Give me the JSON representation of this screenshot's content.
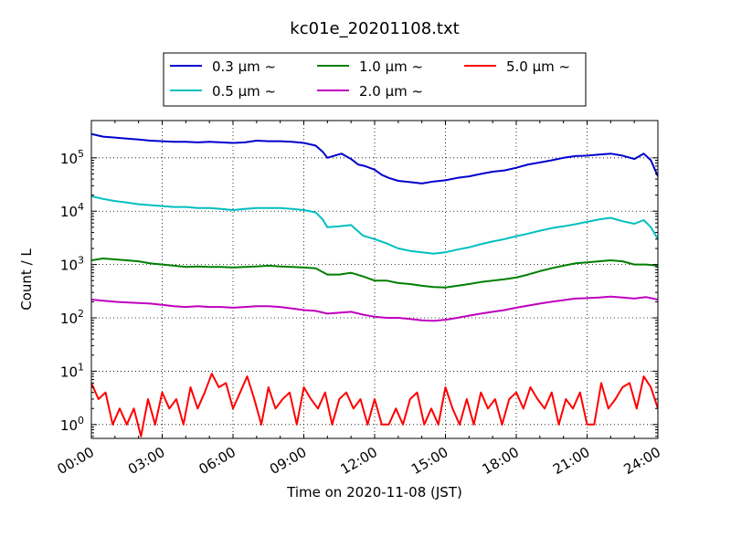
{
  "chart_data": {
    "type": "line",
    "title": "kc01e_20201108.txt",
    "xlabel": "Time on 2020-11-08 (JST)",
    "ylabel": "Count / L",
    "x_unit": "hours",
    "xlim": [
      0,
      24
    ],
    "ylim": [
      0.55,
      500000
    ],
    "yscale": "log",
    "grid": true,
    "legend_position": "top-center",
    "x_ticks": [
      {
        "value": 0,
        "label": "00:00"
      },
      {
        "value": 3,
        "label": "03:00"
      },
      {
        "value": 6,
        "label": "06:00"
      },
      {
        "value": 9,
        "label": "09:00"
      },
      {
        "value": 12,
        "label": "12:00"
      },
      {
        "value": 15,
        "label": "15:00"
      },
      {
        "value": 18,
        "label": "18:00"
      },
      {
        "value": 21,
        "label": "21:00"
      },
      {
        "value": 24,
        "label": "24:00"
      }
    ],
    "y_ticks": [
      {
        "value": 1,
        "base": "10",
        "exp": "0"
      },
      {
        "value": 10,
        "base": "10",
        "exp": "1"
      },
      {
        "value": 100,
        "base": "10",
        "exp": "2"
      },
      {
        "value": 1000,
        "base": "10",
        "exp": "3"
      },
      {
        "value": 10000,
        "base": "10",
        "exp": "4"
      },
      {
        "value": 100000,
        "base": "10",
        "exp": "5"
      }
    ],
    "series": [
      {
        "name": "0.3 μm ~",
        "legend_text": "0.3 μm  ~",
        "color": "#0000cc",
        "x": [
          0,
          0.5,
          1,
          1.5,
          2,
          2.5,
          3,
          3.5,
          4,
          4.5,
          5,
          5.5,
          6,
          6.5,
          7,
          7.5,
          8,
          8.5,
          9,
          9.5,
          9.8,
          10,
          10.3,
          10.6,
          11,
          11.3,
          11.6,
          12,
          12.3,
          12.6,
          13,
          13.5,
          14,
          14.5,
          15,
          15.5,
          16,
          16.5,
          17,
          17.5,
          18,
          18.5,
          19,
          19.5,
          20,
          20.5,
          21,
          21.5,
          22,
          22.5,
          23,
          23.4,
          23.7,
          24
        ],
        "y": [
          280000,
          250000,
          240000,
          230000,
          220000,
          210000,
          205000,
          200000,
          200000,
          195000,
          200000,
          195000,
          190000,
          195000,
          210000,
          205000,
          205000,
          200000,
          190000,
          170000,
          130000,
          100000,
          110000,
          120000,
          95000,
          75000,
          70000,
          60000,
          48000,
          42000,
          37000,
          35000,
          33000,
          36000,
          38000,
          42000,
          45000,
          50000,
          55000,
          58000,
          65000,
          75000,
          82000,
          90000,
          100000,
          108000,
          110000,
          115000,
          120000,
          110000,
          95000,
          120000,
          90000,
          45000
        ]
      },
      {
        "name": "0.5 μm ~",
        "legend_text": "0.5 μm  ~",
        "color": "#00bfbf",
        "x": [
          0,
          0.5,
          1,
          1.5,
          2,
          2.5,
          3,
          3.5,
          4,
          4.5,
          5,
          5.5,
          6,
          6.5,
          7,
          7.5,
          8,
          8.5,
          9,
          9.5,
          9.8,
          10,
          10.5,
          11,
          11.5,
          12,
          12.5,
          13,
          13.5,
          14,
          14.5,
          15,
          15.5,
          16,
          16.5,
          17,
          17.5,
          18,
          18.5,
          19,
          19.5,
          20,
          20.5,
          21,
          21.5,
          22,
          22.5,
          23,
          23.4,
          23.7,
          24
        ],
        "y": [
          19000,
          17000,
          15500,
          14500,
          13500,
          13000,
          12500,
          12000,
          12000,
          11500,
          11500,
          11000,
          10500,
          11000,
          11500,
          11500,
          11500,
          11000,
          10500,
          9500,
          7000,
          5000,
          5200,
          5500,
          3500,
          3000,
          2500,
          2000,
          1800,
          1700,
          1600,
          1700,
          1900,
          2100,
          2400,
          2700,
          3000,
          3400,
          3800,
          4300,
          4800,
          5200,
          5700,
          6300,
          7000,
          7500,
          6500,
          5800,
          6800,
          5000,
          3000
        ]
      },
      {
        "name": "1.0 μm ~",
        "legend_text": "1.0 μm  ~",
        "color": "#007f00",
        "x": [
          0,
          0.5,
          1,
          1.5,
          2,
          2.5,
          3,
          3.5,
          4,
          4.5,
          5,
          5.5,
          6,
          6.5,
          7,
          7.5,
          8,
          8.5,
          9,
          9.5,
          10,
          10.5,
          11,
          11.5,
          12,
          12.5,
          13,
          13.5,
          14,
          14.5,
          15,
          15.5,
          16,
          16.5,
          17,
          17.5,
          18,
          18.5,
          19,
          19.5,
          20,
          20.5,
          21,
          21.5,
          22,
          22.5,
          23,
          23.5,
          24
        ],
        "y": [
          1200,
          1300,
          1250,
          1200,
          1150,
          1050,
          1000,
          950,
          900,
          920,
          900,
          900,
          880,
          900,
          920,
          950,
          920,
          900,
          880,
          850,
          650,
          650,
          700,
          600,
          500,
          500,
          450,
          430,
          400,
          380,
          370,
          400,
          430,
          470,
          500,
          530,
          570,
          650,
          750,
          850,
          950,
          1050,
          1100,
          1150,
          1200,
          1150,
          1000,
          1000,
          950
        ]
      },
      {
        "name": "2.0 μm ~",
        "legend_text": "2.0 μm  ~",
        "color": "#bf00bf",
        "x": [
          0,
          0.5,
          1,
          1.5,
          2,
          2.5,
          3,
          3.5,
          4,
          4.5,
          5,
          5.5,
          6,
          6.5,
          7,
          7.5,
          8,
          8.5,
          9,
          9.5,
          10,
          10.5,
          11,
          11.5,
          12,
          12.5,
          13,
          13.5,
          14,
          14.5,
          15,
          15.5,
          16,
          16.5,
          17,
          17.5,
          18,
          18.5,
          19,
          19.5,
          20,
          20.5,
          21,
          21.5,
          22,
          22.5,
          23,
          23.5,
          24
        ],
        "y": [
          220,
          210,
          200,
          195,
          190,
          185,
          175,
          165,
          160,
          165,
          160,
          160,
          155,
          160,
          165,
          165,
          160,
          150,
          140,
          135,
          120,
          125,
          130,
          115,
          105,
          100,
          100,
          95,
          90,
          88,
          92,
          100,
          110,
          120,
          130,
          140,
          155,
          170,
          185,
          200,
          215,
          230,
          235,
          240,
          250,
          240,
          230,
          245,
          220
        ]
      },
      {
        "name": "5.0 μm ~",
        "legend_text": "5.0 μm  ~",
        "color": "#ff0000",
        "x": [
          0,
          0.3,
          0.6,
          0.9,
          1.2,
          1.5,
          1.8,
          2.1,
          2.4,
          2.7,
          3.0,
          3.3,
          3.6,
          3.9,
          4.2,
          4.5,
          4.8,
          5.1,
          5.4,
          5.7,
          6.0,
          6.3,
          6.6,
          6.9,
          7.2,
          7.5,
          7.8,
          8.1,
          8.4,
          8.7,
          9.0,
          9.3,
          9.6,
          9.9,
          10.2,
          10.5,
          10.8,
          11.1,
          11.4,
          11.7,
          12.0,
          12.3,
          12.6,
          12.9,
          13.2,
          13.5,
          13.8,
          14.1,
          14.4,
          14.7,
          15.0,
          15.3,
          15.6,
          15.9,
          16.2,
          16.5,
          16.8,
          17.1,
          17.4,
          17.7,
          18.0,
          18.3,
          18.6,
          18.9,
          19.2,
          19.5,
          19.8,
          20.1,
          20.4,
          20.7,
          21.0,
          21.3,
          21.6,
          21.9,
          22.2,
          22.5,
          22.8,
          23.1,
          23.4,
          23.7,
          24.0
        ],
        "y": [
          6,
          3,
          4,
          1,
          2,
          1,
          2,
          0.6,
          3,
          1,
          4,
          2,
          3,
          1,
          5,
          2,
          4,
          9,
          5,
          6,
          2,
          4,
          8,
          3,
          1,
          5,
          2,
          3,
          4,
          1,
          5,
          3,
          2,
          4,
          1,
          3,
          4,
          2,
          3,
          1,
          3,
          1,
          1,
          2,
          1,
          3,
          4,
          1,
          2,
          1,
          5,
          2,
          1,
          3,
          1,
          4,
          2,
          3,
          1,
          3,
          4,
          2,
          5,
          3,
          2,
          4,
          1,
          3,
          2,
          4,
          1,
          1,
          6,
          2,
          3,
          5,
          6,
          2,
          8,
          5,
          2
        ]
      }
    ]
  }
}
